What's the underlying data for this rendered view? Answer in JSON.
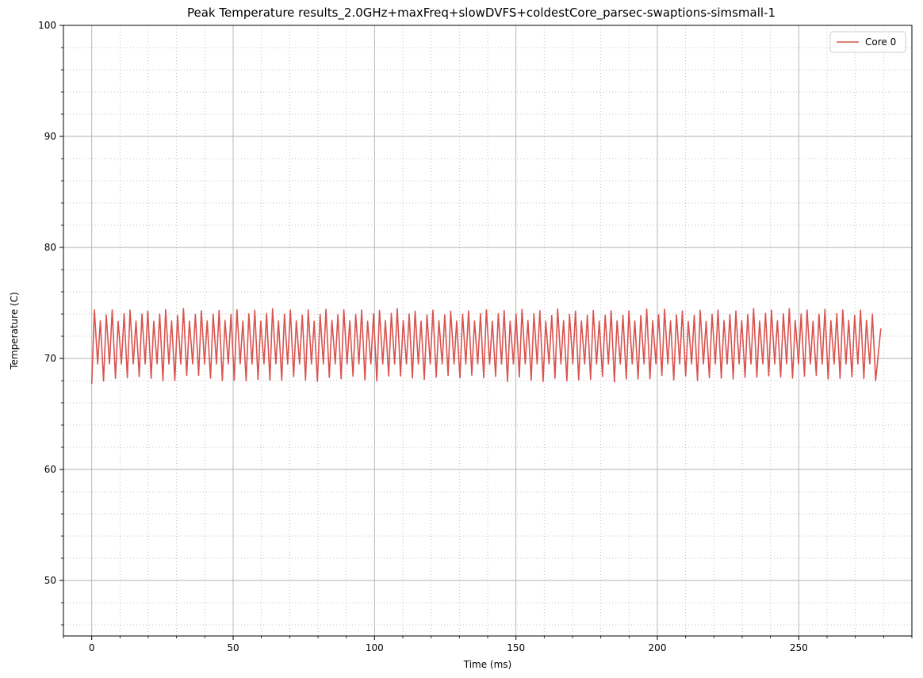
{
  "chart_data": {
    "type": "line",
    "title": "Peak Temperature results_2.0GHz+maxFreq+slowDVFS+coldestCore_parsec-swaptions-simsmall-1",
    "xlabel": "Time (ms)",
    "ylabel": "Temperature (C)",
    "xlim": [
      -10,
      290
    ],
    "ylim": [
      45,
      100
    ],
    "xticks": [
      0,
      50,
      100,
      150,
      200,
      250
    ],
    "yticks": [
      50,
      60,
      70,
      80,
      90,
      100
    ],
    "grid": true,
    "minor_grid": true,
    "legend": "top-right",
    "series": [
      {
        "name": "Core 0",
        "color": "#d9534f",
        "x_start": 0,
        "x_end": 279,
        "cycle_ms": 2.1,
        "peak_range": [
          72.8,
          74.6
        ],
        "trough_range": [
          67.6,
          69.6
        ],
        "first_point": [
          0,
          67.7
        ],
        "last_point": [
          279,
          72.7
        ]
      }
    ]
  }
}
